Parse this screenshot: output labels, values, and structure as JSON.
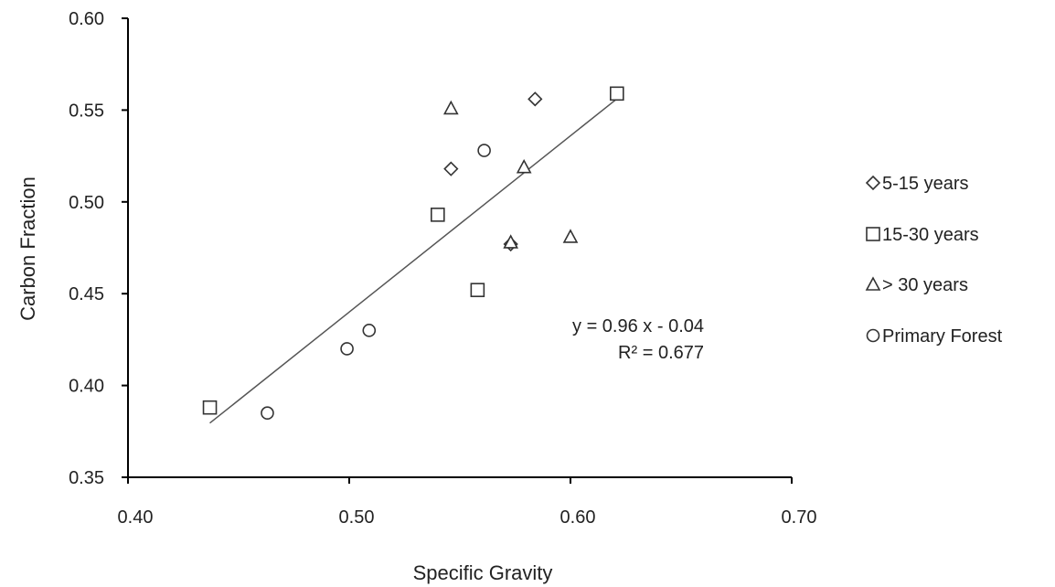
{
  "chart_data": {
    "type": "scatter",
    "title": "",
    "xlabel": "Specific Gravity",
    "ylabel": "Carbon Fraction",
    "xlim": [
      0.4,
      0.7
    ],
    "ylim": [
      0.35,
      0.6
    ],
    "x_ticks": [
      "0.40",
      "0.50",
      "0.60",
      "0.70"
    ],
    "y_ticks": [
      "0.35",
      "0.40",
      "0.45",
      "0.50",
      "0.55",
      "0.60"
    ],
    "grid": false,
    "legend_position": "right",
    "series": [
      {
        "name": "5-15 years",
        "marker": "diamond",
        "points": [
          [
            0.546,
            0.518
          ],
          [
            0.584,
            0.556
          ],
          [
            0.573,
            0.477
          ]
        ]
      },
      {
        "name": "15-30 years",
        "marker": "square",
        "points": [
          [
            0.437,
            0.388
          ],
          [
            0.54,
            0.493
          ],
          [
            0.558,
            0.452
          ],
          [
            0.621,
            0.559
          ]
        ]
      },
      {
        "name": "> 30 years",
        "marker": "triangle",
        "points": [
          [
            0.546,
            0.551
          ],
          [
            0.573,
            0.478
          ],
          [
            0.579,
            0.519
          ],
          [
            0.6,
            0.481
          ]
        ]
      },
      {
        "name": "Primary Forest",
        "marker": "circle",
        "points": [
          [
            0.463,
            0.385
          ],
          [
            0.499,
            0.42
          ],
          [
            0.509,
            0.43
          ],
          [
            0.561,
            0.528
          ]
        ]
      }
    ],
    "trendline": {
      "x_range": [
        0.437,
        0.621
      ],
      "equation_text": "y = 0.96 x - 0.04",
      "r2_text": "R² = 0.677"
    },
    "colors": {
      "marker": "#333333",
      "axis": "#000000",
      "trendline": "#555555",
      "text": "#222222"
    }
  }
}
